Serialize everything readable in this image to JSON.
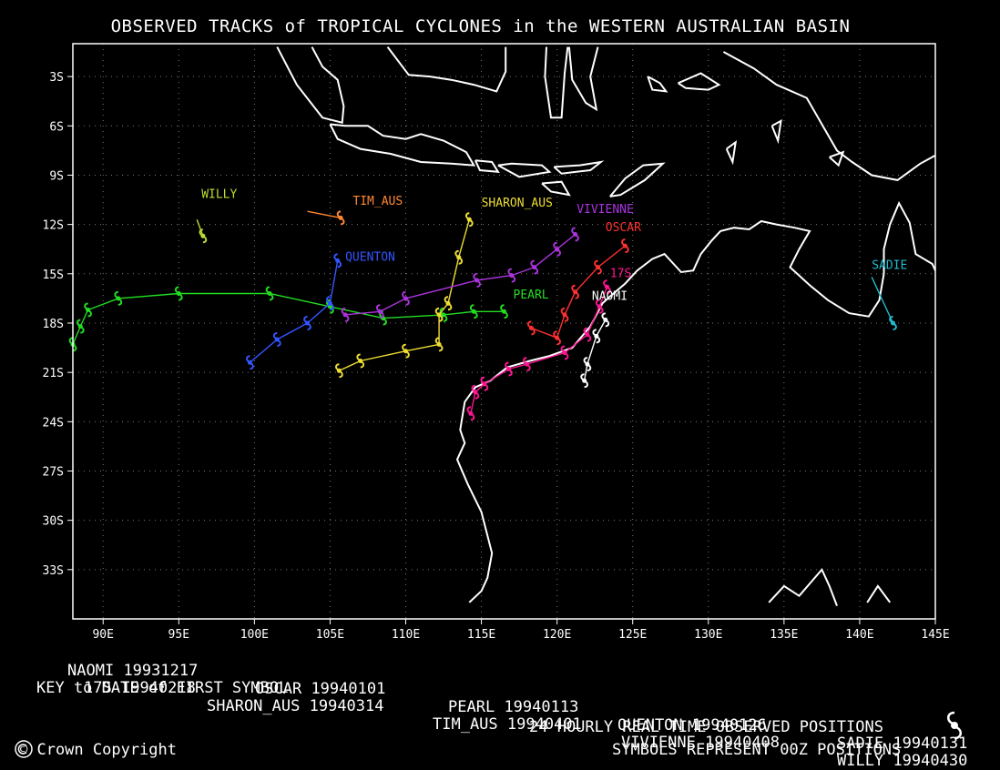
{
  "title": "OBSERVED TRACKS of TROPICAL CYCLONES in the WESTERN AUSTRALIAN BASIN",
  "chart_data": {
    "type": "map",
    "x_axis": {
      "range": [
        88,
        145
      ],
      "ticks": [
        "90E",
        "95E",
        "100E",
        "105E",
        "110E",
        "115E",
        "120E",
        "125E",
        "130E",
        "135E",
        "140E",
        "145E"
      ],
      "tick_values": [
        90,
        95,
        100,
        105,
        110,
        115,
        120,
        125,
        130,
        135,
        140,
        145
      ]
    },
    "y_axis": {
      "range": [
        -36,
        -1
      ],
      "ticks": [
        "3S",
        "6S",
        "9S",
        "12S",
        "15S",
        "18S",
        "21S",
        "24S",
        "27S",
        "30S",
        "33S"
      ],
      "tick_values": [
        -3,
        -6,
        -9,
        -12,
        -15,
        -18,
        -21,
        -24,
        -27,
        -30,
        -33
      ]
    },
    "grid": true,
    "tracks": [
      {
        "name": "NAOMI",
        "color": "#ffffff",
        "points": [
          [
            123.2,
            -17.8
          ],
          [
            122.6,
            -18.8
          ],
          [
            122.0,
            -20.5
          ],
          [
            121.8,
            -21.5
          ]
        ]
      },
      {
        "name": "17S",
        "color": "#ff1493",
        "points": [
          [
            123.3,
            -15.8
          ],
          [
            122.8,
            -17.0
          ],
          [
            122.0,
            -18.7
          ],
          [
            120.5,
            -19.8
          ],
          [
            118.0,
            -20.5
          ],
          [
            116.8,
            -20.8
          ],
          [
            115.2,
            -21.7
          ],
          [
            114.6,
            -22.2
          ],
          [
            114.3,
            -23.5
          ]
        ]
      },
      {
        "name": "OSCAR",
        "color": "#ff3030",
        "points": [
          [
            124.5,
            -13.3
          ],
          [
            122.7,
            -14.6
          ],
          [
            121.2,
            -16.1
          ],
          [
            120.5,
            -17.5
          ],
          [
            120.0,
            -18.9
          ],
          [
            118.3,
            -18.3
          ]
        ]
      },
      {
        "name": "PEARL",
        "color": "#22dd22",
        "points": [
          [
            116.5,
            -17.3
          ],
          [
            114.5,
            -17.3
          ],
          [
            112.5,
            -17.5
          ],
          [
            108.5,
            -17.7
          ],
          [
            105.0,
            -17.0
          ],
          [
            101.0,
            -16.2
          ],
          [
            95.0,
            -16.2
          ],
          [
            91.0,
            -16.5
          ],
          [
            89.0,
            -17.2
          ],
          [
            88.5,
            -18.2
          ],
          [
            88.0,
            -19.3
          ]
        ]
      },
      {
        "name": "QUENTON",
        "color": "#3355ff",
        "points": [
          [
            105.5,
            -14.2
          ],
          [
            105.0,
            -16.8
          ],
          [
            103.5,
            -18.0
          ],
          [
            101.5,
            -19.0
          ],
          [
            99.7,
            -20.4
          ]
        ]
      },
      {
        "name": "SADIE",
        "color": "#22bbcc",
        "points": [
          [
            140.8,
            -15.2
          ],
          [
            142.2,
            -18.0
          ]
        ]
      },
      {
        "name": "SHARON_AUS",
        "color": "#eedd33",
        "points": [
          [
            114.2,
            -11.7
          ],
          [
            113.5,
            -14.0
          ],
          [
            112.8,
            -16.8
          ],
          [
            112.2,
            -17.5
          ],
          [
            112.2,
            -19.3
          ],
          [
            110.0,
            -19.7
          ],
          [
            107.0,
            -20.3
          ],
          [
            105.6,
            -20.9
          ]
        ]
      },
      {
        "name": "TIM_AUS",
        "color": "#ff8833",
        "points": [
          [
            103.5,
            -11.2
          ],
          [
            105.7,
            -11.6
          ]
        ]
      },
      {
        "name": "VIVIENNE",
        "color": "#aa33dd",
        "points": [
          [
            121.2,
            -12.6
          ],
          [
            120.0,
            -13.5
          ],
          [
            118.5,
            -14.6
          ],
          [
            117.0,
            -15.1
          ],
          [
            114.7,
            -15.4
          ],
          [
            110.0,
            -16.5
          ],
          [
            108.3,
            -17.3
          ],
          [
            106.0,
            -17.5
          ]
        ]
      },
      {
        "name": "WILLY",
        "color": "#bbdd33",
        "points": [
          [
            96.2,
            -11.7
          ],
          [
            96.6,
            -12.7
          ]
        ]
      }
    ],
    "track_labels": [
      {
        "text": "WILLY",
        "color": "#bbdd33",
        "lon": 96.5,
        "lat": -10.4
      },
      {
        "text": "TIM_AUS",
        "color": "#ff8833",
        "lon": 106.5,
        "lat": -10.8
      },
      {
        "text": "SHARON_AUS",
        "color": "#eedd33",
        "lon": 115.0,
        "lat": -10.9
      },
      {
        "text": "VIVIENNE",
        "color": "#aa33dd",
        "lon": 121.3,
        "lat": -11.3
      },
      {
        "text": "OSCAR",
        "color": "#ff3030",
        "lon": 123.2,
        "lat": -12.4
      },
      {
        "text": "QUENTON",
        "color": "#3355ff",
        "lon": 106.0,
        "lat": -14.2
      },
      {
        "text": "SADIE",
        "color": "#22bbcc",
        "lon": 140.8,
        "lat": -14.7
      },
      {
        "text": "17S",
        "color": "#ff1493",
        "lon": 123.5,
        "lat": -15.2
      },
      {
        "text": "PEARL",
        "color": "#22dd22",
        "lon": 117.1,
        "lat": -16.5
      },
      {
        "text": "NAOMI",
        "color": "#ffffff",
        "lon": 122.3,
        "lat": -16.6
      }
    ]
  },
  "legend": {
    "row1": [
      {
        "name": "NAOMI",
        "date": "19931217"
      },
      {
        "name": "OSCAR",
        "date": "19940101"
      },
      {
        "name": "PEARL",
        "date": "19940113"
      },
      {
        "name": "QUENTON",
        "date": "19940126"
      },
      {
        "name": "SADIE",
        "date": "19940131"
      }
    ],
    "row2": [
      {
        "name": "17S",
        "date": "19940218"
      },
      {
        "name": "SHARON_AUS",
        "date": "19940314"
      },
      {
        "name": "TIM_AUS",
        "date": "19940401"
      },
      {
        "name": "VIVIENNE",
        "date": "19940408"
      },
      {
        "name": "WILLY",
        "date": "19940430"
      }
    ]
  },
  "key_text": "KEY to DATE of FIRST SYMBOL",
  "footer": {
    "observed": "24 HOURLY REAL TIME OBSERVED POSITIONS",
    "symbols": "SYMBOLS REPRESENT 00Z POSITIONS",
    "copyright": "© Crown Copyright"
  }
}
